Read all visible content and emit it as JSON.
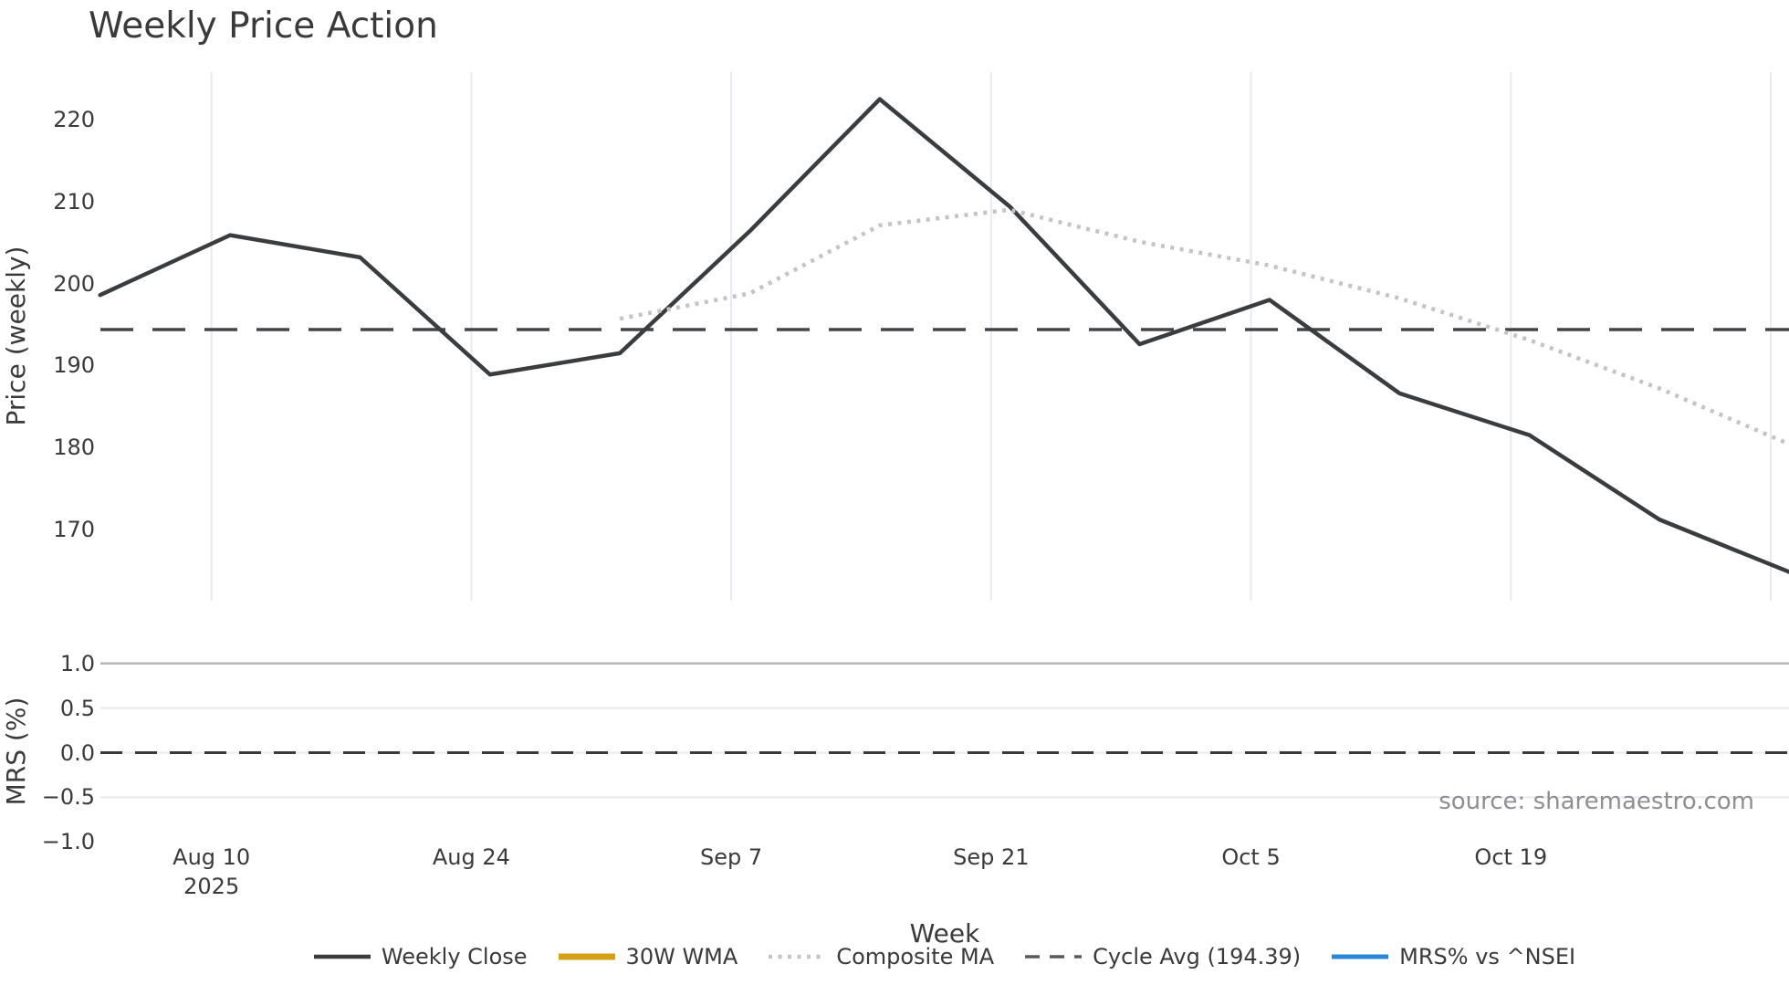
{
  "title": "Weekly Price Action",
  "axes": {
    "price_ylabel": "Price (weekly)",
    "mrs_ylabel": "MRS (%)",
    "xlabel": "Week"
  },
  "source_text": "source: sharemaestro.com",
  "legend": {
    "items": [
      {
        "label": "Weekly Close",
        "swatch": "solid-dark-line"
      },
      {
        "label": "30W WMA",
        "swatch": "solid-gold-line"
      },
      {
        "label": "Composite MA",
        "swatch": "dotted-gray-line"
      },
      {
        "label": "Cycle Avg (194.39)",
        "swatch": "dashed-gray-line"
      },
      {
        "label": "MRS% vs ^NSEI",
        "swatch": "solid-blue-line"
      }
    ]
  },
  "colors": {
    "weekly_close": "#3a3c3e",
    "wma_gold": "#d4a017",
    "composite_gray": "#c4c4c4",
    "cycle_dash": "#444448",
    "mrs_blue": "#2e86d9",
    "gridline": "#e8eaf0",
    "gridline_strong": "#b6b6ba",
    "text": "#3a3a3a",
    "source_gray": "#8f8f93"
  },
  "chart_data": {
    "type": "line",
    "title": "Weekly Price Action",
    "xlabel": "Week",
    "x_year": "2025",
    "x": [
      "Aug 4",
      "Aug 11",
      "Aug 18",
      "Aug 25",
      "Sep 1",
      "Sep 8",
      "Sep 15",
      "Sep 22",
      "Sep 29",
      "Oct 6",
      "Oct 13",
      "Oct 20",
      "Oct 27",
      "Nov 3"
    ],
    "price_panel": {
      "ylabel": "Price (weekly)",
      "ylim": [
        161.3,
        225.8
      ],
      "yticks": [
        220,
        210,
        200,
        190,
        180,
        170
      ],
      "grid": "vertical-only",
      "series": [
        {
          "name": "Weekly Close",
          "style": "solid",
          "color": "#3a3c3e",
          "width": 4.5,
          "values": [
            198.6,
            205.9,
            203.2,
            188.9,
            191.5,
            206.4,
            222.5,
            209.4,
            192.6,
            198.0,
            186.6,
            181.5,
            171.2,
            164.8
          ]
        },
        {
          "name": "Composite MA",
          "style": "dotted",
          "color": "#c4c4c4",
          "width": 4.5,
          "values": [
            null,
            null,
            null,
            null,
            195.7,
            198.8,
            207.1,
            209.0,
            205.1,
            202.2,
            198.2,
            193.1,
            187.2,
            180.4
          ]
        },
        {
          "name": "Cycle Avg",
          "style": "dashed",
          "color": "#444448",
          "width": 3.5,
          "constant": 194.39
        },
        {
          "name": "30W WMA",
          "style": "solid",
          "color": "#d4a017",
          "width": 7,
          "values": null,
          "visible_in_plot": false,
          "note": "legend entry only; line not visible in plotted range"
        }
      ]
    },
    "mrs_panel": {
      "ylabel": "MRS (%)",
      "ylim": [
        -1.1,
        1.1
      ],
      "yticks": [
        1.0,
        0.5,
        0.0,
        -0.5,
        -1.0
      ],
      "ytick_labels": [
        "1.0",
        "0.5",
        "0.0",
        "−0.5",
        "−1.0"
      ],
      "zero_line": 0,
      "grid": "horizontal-only",
      "series": [
        {
          "name": "MRS% vs ^NSEI",
          "color": "#2e86d9",
          "values": null,
          "visible_in_plot": false,
          "note": "legend entry only; no line visible, zero dashed line shown"
        }
      ]
    },
    "x_ticks": [
      {
        "label": "Aug 10",
        "sublabel": "2025",
        "week_frac": 0.857
      },
      {
        "label": "Aug 24",
        "week_frac": 2.857
      },
      {
        "label": "Sep 7",
        "week_frac": 4.857
      },
      {
        "label": "Sep 21",
        "week_frac": 6.857
      },
      {
        "label": "Oct 5",
        "week_frac": 8.857
      },
      {
        "label": "Oct 19",
        "week_frac": 10.857
      },
      {
        "label": "",
        "week_frac": 12.857
      }
    ]
  }
}
